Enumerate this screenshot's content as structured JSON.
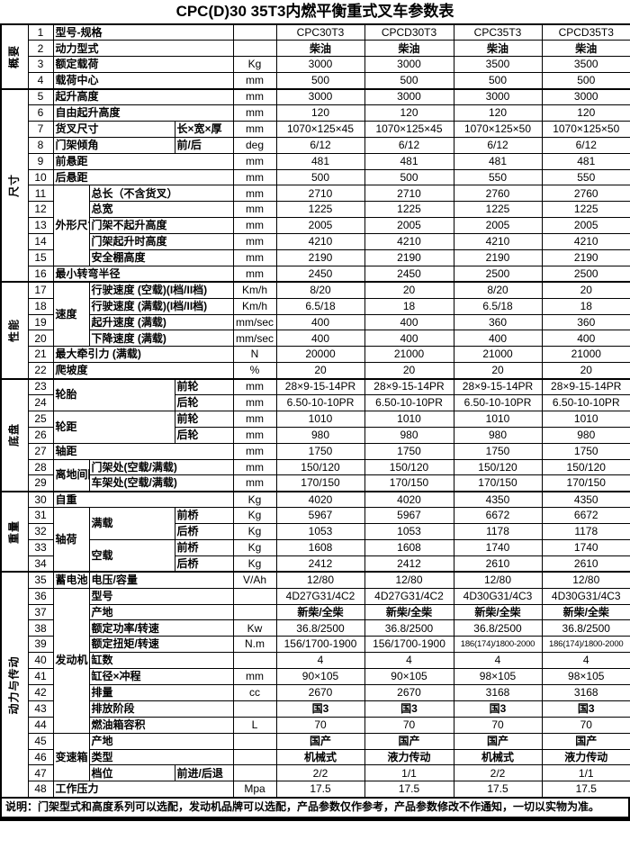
{
  "title": "CPC(D)30  35T3内燃平衡重式叉车参数表",
  "footer_note": "说明：门架型式和高度系列可以选配，发动机品牌可以选配，产品参数仅作参考，产品参数修改不作通知，一切以实物为准。",
  "models": [
    "CPC30T3",
    "CPCD30T3",
    "CPC35T3",
    "CPCD35T3"
  ],
  "section_labels": [
    "概要",
    "尺寸",
    "性能",
    "底盘",
    "重量",
    "动力与传动"
  ],
  "table": {
    "rows": [
      {
        "num": "1",
        "section": {
          "label": "概要",
          "rowspan": 4
        },
        "secStart": true,
        "labels": [
          {
            "t": "型号-规格",
            "c": 3
          }
        ],
        "unit": "",
        "values": [
          "CPC30T3",
          "CPCD30T3",
          "CPC35T3",
          "CPCD35T3"
        ]
      },
      {
        "num": "2",
        "labels": [
          {
            "t": "动力型式",
            "c": 3
          }
        ],
        "unit": "",
        "values": [
          "柴油",
          "柴油",
          "柴油",
          "柴油"
        ],
        "cn": true
      },
      {
        "num": "3",
        "labels": [
          {
            "t": "额定载荷",
            "c": 3
          }
        ],
        "unit": "Kg",
        "values": [
          "3000",
          "3000",
          "3500",
          "3500"
        ]
      },
      {
        "num": "4",
        "labels": [
          {
            "t": "载荷中心",
            "c": 3
          }
        ],
        "unit": "mm",
        "values": [
          "500",
          "500",
          "500",
          "500"
        ]
      },
      {
        "num": "5",
        "section": {
          "label": "尺寸",
          "rowspan": 12
        },
        "secStart": true,
        "labels": [
          {
            "t": "起升高度",
            "c": 3
          }
        ],
        "unit": "mm",
        "values": [
          "3000",
          "3000",
          "3000",
          "3000"
        ]
      },
      {
        "num": "6",
        "labels": [
          {
            "t": "自由起升高度",
            "c": 3
          }
        ],
        "unit": "mm",
        "values": [
          "120",
          "120",
          "120",
          "120"
        ]
      },
      {
        "num": "7",
        "labels": [
          {
            "t": "货叉尺寸",
            "c": 2
          },
          {
            "t": "长×宽×厚",
            "c": 1
          }
        ],
        "unit": "mm",
        "values": [
          "1070×125×45",
          "1070×125×45",
          "1070×125×50",
          "1070×125×50"
        ]
      },
      {
        "num": "8",
        "labels": [
          {
            "t": "门架倾角",
            "c": 2
          },
          {
            "t": "前/后",
            "c": 1
          }
        ],
        "unit": "deg",
        "values": [
          "6/12",
          "6/12",
          "6/12",
          "6/12"
        ]
      },
      {
        "num": "9",
        "labels": [
          {
            "t": "前悬距",
            "c": 3
          }
        ],
        "unit": "mm",
        "values": [
          "481",
          "481",
          "481",
          "481"
        ]
      },
      {
        "num": "10",
        "labels": [
          {
            "t": "后悬距",
            "c": 3
          }
        ],
        "unit": "mm",
        "values": [
          "500",
          "500",
          "550",
          "550"
        ]
      },
      {
        "num": "11",
        "labels": [
          {
            "t": "外形尺寸",
            "c": 1,
            "r": 5
          },
          {
            "t": "总长（不含货叉）",
            "c": 2
          }
        ],
        "unit": "mm",
        "values": [
          "2710",
          "2710",
          "2760",
          "2760"
        ]
      },
      {
        "num": "12",
        "labels": [
          {
            "t": "总宽",
            "c": 2
          }
        ],
        "unit": "mm",
        "values": [
          "1225",
          "1225",
          "1225",
          "1225"
        ]
      },
      {
        "num": "13",
        "labels": [
          {
            "t": "门架不起升高度",
            "c": 2
          }
        ],
        "unit": "mm",
        "values": [
          "2005",
          "2005",
          "2005",
          "2005"
        ]
      },
      {
        "num": "14",
        "labels": [
          {
            "t": "门架起升时高度",
            "c": 2
          }
        ],
        "unit": "mm",
        "values": [
          "4210",
          "4210",
          "4210",
          "4210"
        ]
      },
      {
        "num": "15",
        "labels": [
          {
            "t": "安全棚高度",
            "c": 2
          }
        ],
        "unit": "mm",
        "values": [
          "2190",
          "2190",
          "2190",
          "2190"
        ]
      },
      {
        "num": "16",
        "labels": [
          {
            "t": "最小转弯半径",
            "c": 3
          }
        ],
        "unit": "mm",
        "values": [
          "2450",
          "2450",
          "2500",
          "2500"
        ]
      },
      {
        "num": "17",
        "section": {
          "label": "性能",
          "rowspan": 6
        },
        "secStart": true,
        "labels": [
          {
            "t": "速度",
            "c": 1,
            "r": 4
          },
          {
            "t": "行驶速度 (空载)(I档/II档)",
            "c": 2
          }
        ],
        "unit": "Km/h",
        "values": [
          "8/20",
          "20",
          "8/20",
          "20"
        ]
      },
      {
        "num": "18",
        "labels": [
          {
            "t": "行驶速度 (满载)(I档/II档)",
            "c": 2
          }
        ],
        "unit": "Km/h",
        "values": [
          "6.5/18",
          "18",
          "6.5/18",
          "18"
        ]
      },
      {
        "num": "19",
        "labels": [
          {
            "t": "起升速度 (满载)",
            "c": 2
          }
        ],
        "unit": "mm/sec",
        "values": [
          "400",
          "400",
          "360",
          "360"
        ]
      },
      {
        "num": "20",
        "labels": [
          {
            "t": "下降速度 (满载)",
            "c": 2
          }
        ],
        "unit": "mm/sec",
        "values": [
          "400",
          "400",
          "400",
          "400"
        ]
      },
      {
        "num": "21",
        "labels": [
          {
            "t": "最大牵引力 (满载)",
            "c": 3
          }
        ],
        "unit": "N",
        "values": [
          "20000",
          "21000",
          "21000",
          "21000"
        ]
      },
      {
        "num": "22",
        "labels": [
          {
            "t": "爬坡度",
            "c": 3
          }
        ],
        "unit": "%",
        "values": [
          "20",
          "20",
          "20",
          "20"
        ]
      },
      {
        "num": "23",
        "section": {
          "label": "底盘",
          "rowspan": 7
        },
        "secStart": true,
        "labels": [
          {
            "t": "轮胎",
            "c": 2,
            "r": 2
          },
          {
            "t": "前轮",
            "c": 1
          }
        ],
        "unit": "mm",
        "values": [
          "28×9-15-14PR",
          "28×9-15-14PR",
          "28×9-15-14PR",
          "28×9-15-14PR"
        ]
      },
      {
        "num": "24",
        "labels": [
          {
            "t": "后轮",
            "c": 1
          }
        ],
        "unit": "mm",
        "values": [
          "6.50-10-10PR",
          "6.50-10-10PR",
          "6.50-10-10PR",
          "6.50-10-10PR"
        ]
      },
      {
        "num": "25",
        "labels": [
          {
            "t": "轮距",
            "c": 2,
            "r": 2
          },
          {
            "t": "前轮",
            "c": 1
          }
        ],
        "unit": "mm",
        "values": [
          "1010",
          "1010",
          "1010",
          "1010"
        ]
      },
      {
        "num": "26",
        "labels": [
          {
            "t": "后轮",
            "c": 1
          }
        ],
        "unit": "mm",
        "values": [
          "980",
          "980",
          "980",
          "980"
        ]
      },
      {
        "num": "27",
        "labels": [
          {
            "t": "轴距",
            "c": 3
          }
        ],
        "unit": "mm",
        "values": [
          "1750",
          "1750",
          "1750",
          "1750"
        ]
      },
      {
        "num": "28",
        "labels": [
          {
            "t": "离地间隙",
            "c": 1,
            "r": 2
          },
          {
            "t": "门架处(空载/满载)",
            "c": 2
          }
        ],
        "unit": "mm",
        "values": [
          "150/120",
          "150/120",
          "150/120",
          "150/120"
        ]
      },
      {
        "num": "29",
        "labels": [
          {
            "t": "车架处(空载/满载)",
            "c": 2
          }
        ],
        "unit": "mm",
        "values": [
          "170/150",
          "170/150",
          "170/150",
          "170/150"
        ]
      },
      {
        "num": "30",
        "section": {
          "label": "重量",
          "rowspan": 5
        },
        "secStart": true,
        "labels": [
          {
            "t": "自重",
            "c": 3
          }
        ],
        "unit": "Kg",
        "values": [
          "4020",
          "4020",
          "4350",
          "4350"
        ]
      },
      {
        "num": "31",
        "labels": [
          {
            "t": "轴荷",
            "c": 1,
            "r": 4
          },
          {
            "t": "满载",
            "c": 1,
            "r": 2
          },
          {
            "t": "前桥",
            "c": 1
          }
        ],
        "unit": "Kg",
        "values": [
          "5967",
          "5967",
          "6672",
          "6672"
        ]
      },
      {
        "num": "32",
        "labels": [
          {
            "t": "后桥",
            "c": 1
          }
        ],
        "unit": "Kg",
        "values": [
          "1053",
          "1053",
          "1178",
          "1178"
        ]
      },
      {
        "num": "33",
        "labels": [
          {
            "t": "空载",
            "c": 1,
            "r": 2
          },
          {
            "t": "前桥",
            "c": 1
          }
        ],
        "unit": "Kg",
        "values": [
          "1608",
          "1608",
          "1740",
          "1740"
        ]
      },
      {
        "num": "34",
        "labels": [
          {
            "t": "后桥",
            "c": 1
          }
        ],
        "unit": "Kg",
        "values": [
          "2412",
          "2412",
          "2610",
          "2610"
        ]
      },
      {
        "num": "35",
        "section": {
          "label": "动力与传动",
          "rowspan": 14
        },
        "secStart": true,
        "labels": [
          {
            "t": "蓄电池",
            "c": 1
          },
          {
            "t": "电压/容量",
            "c": 2
          }
        ],
        "unit": "V/Ah",
        "values": [
          "12/80",
          "12/80",
          "12/80",
          "12/80"
        ]
      },
      {
        "num": "36",
        "labels": [
          {
            "t": "发动机",
            "c": 1,
            "r": 9
          },
          {
            "t": "型号",
            "c": 2
          }
        ],
        "unit": "",
        "values": [
          "4D27G31/4C2",
          "4D27G31/4C2",
          "4D30G31/4C3",
          "4D30G31/4C3"
        ]
      },
      {
        "num": "37",
        "labels": [
          {
            "t": "产地",
            "c": 2
          }
        ],
        "unit": "",
        "values": [
          "新柴/全柴",
          "新柴/全柴",
          "新柴/全柴",
          "新柴/全柴"
        ],
        "cn": true
      },
      {
        "num": "38",
        "labels": [
          {
            "t": "额定功率/转速",
            "c": 2
          }
        ],
        "unit": "Kw",
        "values": [
          "36.8/2500",
          "36.8/2500",
          "36.8/2500",
          "36.8/2500"
        ]
      },
      {
        "num": "39",
        "labels": [
          {
            "t": "额定扭矩/转速",
            "c": 2
          }
        ],
        "unit": "N.m",
        "values": [
          "156/1700-1900",
          "156/1700-1900",
          "186(174)/1800-2000",
          "186(174)/1800-2000"
        ]
      },
      {
        "num": "40",
        "labels": [
          {
            "t": "缸数",
            "c": 2
          }
        ],
        "unit": "",
        "values": [
          "4",
          "4",
          "4",
          "4"
        ]
      },
      {
        "num": "41",
        "labels": [
          {
            "t": "缸径×冲程",
            "c": 2
          }
        ],
        "unit": "mm",
        "values": [
          "90×105",
          "90×105",
          "98×105",
          "98×105"
        ]
      },
      {
        "num": "42",
        "labels": [
          {
            "t": "排量",
            "c": 2
          }
        ],
        "unit": "cc",
        "values": [
          "2670",
          "2670",
          "3168",
          "3168"
        ]
      },
      {
        "num": "43",
        "labels": [
          {
            "t": "排放阶段",
            "c": 2
          }
        ],
        "unit": "",
        "values": [
          "国3",
          "国3",
          "国3",
          "国3"
        ],
        "cn": true
      },
      {
        "num": "44",
        "labels": [
          {
            "t": "燃油箱容积",
            "c": 2
          }
        ],
        "unit": "L",
        "values": [
          "70",
          "70",
          "70",
          "70"
        ]
      },
      {
        "num": "45",
        "labels": [
          {
            "t": "变速箱",
            "c": 1,
            "r": 3
          },
          {
            "t": "产地",
            "c": 2
          }
        ],
        "unit": "",
        "values": [
          "国产",
          "国产",
          "国产",
          "国产"
        ],
        "cn": true
      },
      {
        "num": "46",
        "labels": [
          {
            "t": "类型",
            "c": 2
          }
        ],
        "unit": "",
        "values": [
          "机械式",
          "液力传动",
          "机械式",
          "液力传动"
        ],
        "cn": true
      },
      {
        "num": "47",
        "labels": [
          {
            "t": "档位",
            "c": 1
          },
          {
            "t": "前进/后退",
            "c": 1
          }
        ],
        "unit": "",
        "values": [
          "2/2",
          "1/1",
          "2/2",
          "1/1"
        ]
      },
      {
        "num": "48",
        "labels": [
          {
            "t": "工作压力",
            "c": 3
          }
        ],
        "unit": "Mpa",
        "values": [
          "17.5",
          "17.5",
          "17.5",
          "17.5"
        ]
      }
    ]
  }
}
